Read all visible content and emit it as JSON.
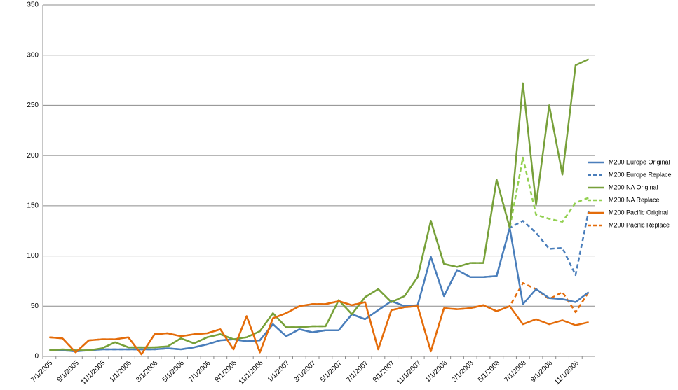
{
  "chart_data": {
    "type": "line",
    "categories": [
      "7/1/2005",
      null,
      "9/1/2005",
      null,
      "11/1/2005",
      null,
      "1/1/2006",
      null,
      "3/1/2006",
      null,
      "5/1/2006",
      null,
      "7/1/2006",
      null,
      "9/1/2006",
      null,
      "11/1/2006",
      null,
      "1/1/2007",
      null,
      "3/1/2007",
      null,
      "5/1/2007",
      null,
      "7/1/2007",
      null,
      "9/1/2007",
      null,
      "11/1/2007",
      null,
      "1/1/2008",
      null,
      "3/1/2008",
      null,
      "5/1/2008",
      null,
      "7/1/2008",
      null,
      "9/1/2008",
      null,
      "11/1/2008",
      null
    ],
    "ylim": [
      0,
      350
    ],
    "yticks": [
      0,
      50,
      100,
      150,
      200,
      250,
      300,
      350
    ],
    "grid": true,
    "legend": "right",
    "series": [
      {
        "name": "M200 Europe Original",
        "color": "#4a7ebb",
        "dash": false,
        "values": [
          6,
          6,
          5,
          6,
          7,
          7,
          7,
          7,
          7,
          8,
          7,
          9,
          12,
          16,
          17,
          15,
          16,
          32,
          20,
          27,
          24,
          26,
          26,
          42,
          37,
          46,
          55,
          50,
          51,
          99,
          60,
          86,
          79,
          79,
          80,
          128,
          52,
          67,
          58,
          57,
          54,
          64
        ]
      },
      {
        "name": "M200 Europe Replace",
        "color": "#4a7ebb",
        "dash": true,
        "values": [
          6,
          6,
          5,
          6,
          7,
          7,
          7,
          7,
          7,
          8,
          7,
          9,
          12,
          16,
          17,
          15,
          16,
          32,
          20,
          27,
          24,
          26,
          26,
          42,
          37,
          46,
          55,
          50,
          51,
          99,
          60,
          86,
          79,
          79,
          80,
          128,
          135,
          123,
          107,
          108,
          81,
          145
        ]
      },
      {
        "name": "M200 NA Original",
        "color": "#77a03a",
        "dash": false,
        "values": [
          6,
          7,
          6,
          6,
          8,
          14,
          9,
          9,
          9,
          10,
          18,
          13,
          19,
          22,
          17,
          19,
          25,
          43,
          29,
          29,
          30,
          30,
          56,
          42,
          59,
          67,
          54,
          60,
          79,
          135,
          92,
          89,
          93,
          93,
          176,
          128,
          272,
          151,
          250,
          181,
          290,
          296
        ]
      },
      {
        "name": "M200 NA Replace",
        "color": "#92d050",
        "dash": true,
        "values": [
          6,
          7,
          6,
          6,
          8,
          14,
          9,
          9,
          9,
          10,
          18,
          13,
          19,
          22,
          17,
          19,
          25,
          43,
          29,
          29,
          30,
          30,
          56,
          42,
          59,
          67,
          54,
          60,
          79,
          135,
          92,
          89,
          93,
          93,
          176,
          128,
          198,
          141,
          137,
          134,
          153,
          158
        ]
      },
      {
        "name": "M200 Pacific Original",
        "color": "#e46c0a",
        "dash": false,
        "values": [
          19,
          18,
          4,
          16,
          17,
          17,
          19,
          2,
          22,
          23,
          20,
          22,
          23,
          27,
          7,
          40,
          4,
          38,
          43,
          50,
          52,
          52,
          55,
          51,
          54,
          7,
          46,
          49,
          50,
          5,
          48,
          47,
          48,
          51,
          45,
          50,
          32,
          37,
          32,
          36,
          31,
          34
        ]
      },
      {
        "name": "M200 Pacific Replace",
        "color": "#e46c0a",
        "dash": true,
        "values": [
          19,
          18,
          4,
          16,
          17,
          17,
          19,
          2,
          22,
          23,
          20,
          22,
          23,
          27,
          7,
          40,
          4,
          38,
          43,
          50,
          52,
          52,
          55,
          51,
          54,
          7,
          46,
          49,
          50,
          5,
          48,
          47,
          48,
          51,
          45,
          50,
          73,
          67,
          57,
          64,
          44,
          64
        ]
      }
    ]
  }
}
